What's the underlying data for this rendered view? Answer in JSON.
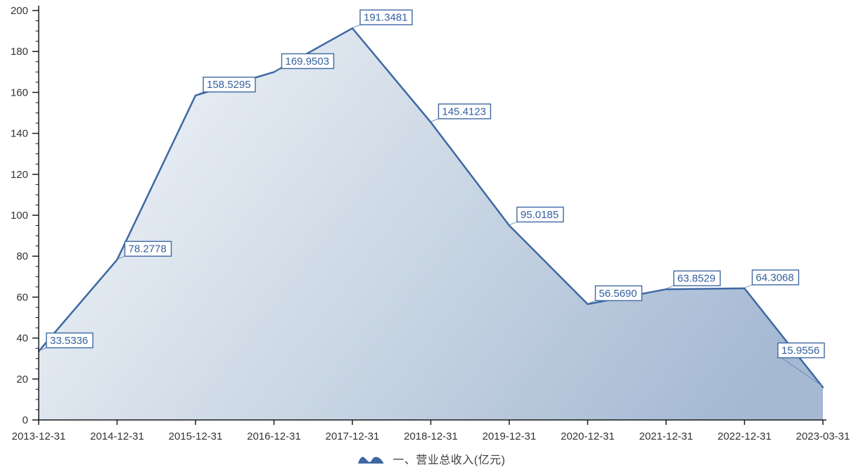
{
  "chart_data": {
    "type": "area",
    "title": "",
    "xlabel": "",
    "ylabel": "",
    "categories": [
      "2013-12-31",
      "2014-12-31",
      "2015-12-31",
      "2016-12-31",
      "2017-12-31",
      "2018-12-31",
      "2019-12-31",
      "2020-12-31",
      "2021-12-31",
      "2022-12-31",
      "2023-03-31"
    ],
    "values": [
      33.5336,
      78.2778,
      158.5295,
      169.9503,
      191.3481,
      145.4123,
      95.0185,
      56.569,
      63.8529,
      64.3068,
      15.9556
    ],
    "point_labels": [
      "33.5336",
      "78.2778",
      "158.5295",
      "169.9503",
      "191.3481",
      "145.4123",
      "95.0185",
      "56.5690",
      "63.8529",
      "64.3068",
      "15.9556"
    ],
    "ylim": [
      0,
      200
    ],
    "yticks": [
      0,
      20,
      40,
      60,
      80,
      100,
      120,
      140,
      160,
      180,
      200
    ],
    "yminor_step": 5,
    "grid": false,
    "legend_position": "bottom-center",
    "legend": "一、营业总收入(亿元)",
    "legend_icon": "area-series-icon"
  },
  "colors": {
    "line": "#3e68a3",
    "area_gradient_start": "#f2f5f9",
    "area_gradient_mid": "#ccd8e5",
    "area_gradient_end": "#a5b9d3",
    "label_text": "#35609e",
    "label_border": "#3e68a3",
    "label_bg": "#ffffff",
    "leader_line": "#6d87b5",
    "axis": "#1a1a1a",
    "tick_text": "#333333",
    "legend_text": "#404040"
  }
}
